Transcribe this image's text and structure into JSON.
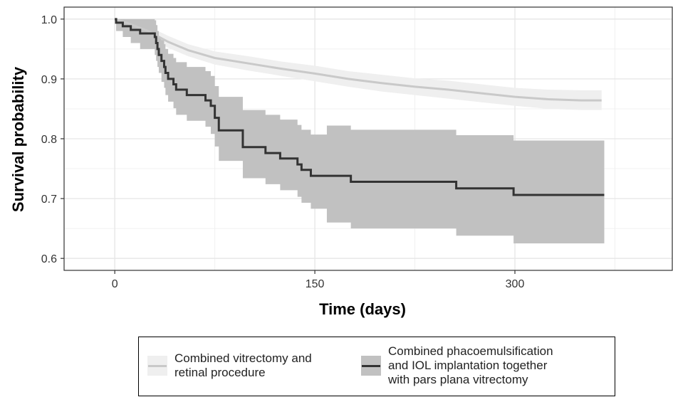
{
  "chart_data": {
    "type": "line",
    "xlabel": "Time (days)",
    "ylabel": "Survival probability",
    "xlim": [
      -38,
      418
    ],
    "ylim": [
      0.58,
      1.02
    ],
    "xticks": [
      0,
      150,
      300
    ],
    "yticks": [
      0.6,
      0.7,
      0.8,
      0.9,
      1.0
    ],
    "ytick_labels": [
      "0.6",
      "0.7",
      "0.8",
      "0.9",
      "1.0"
    ],
    "grid": true,
    "legend_position": "bottom",
    "series": [
      {
        "name": "Combined vitrectomy and\nretinal procedure",
        "line_color": "#c9c9c9",
        "band_color": "#efefef",
        "step": false,
        "points": [
          {
            "x": 0,
            "y": 1.0,
            "lo": 1.0,
            "hi": 1.0
          },
          {
            "x": 10,
            "y": 0.993,
            "lo": 0.985,
            "hi": 0.998
          },
          {
            "x": 25,
            "y": 0.98,
            "lo": 0.97,
            "hi": 0.988
          },
          {
            "x": 40,
            "y": 0.962,
            "lo": 0.952,
            "hi": 0.972
          },
          {
            "x": 55,
            "y": 0.948,
            "lo": 0.938,
            "hi": 0.958
          },
          {
            "x": 75,
            "y": 0.935,
            "lo": 0.924,
            "hi": 0.946
          },
          {
            "x": 100,
            "y": 0.926,
            "lo": 0.914,
            "hi": 0.938
          },
          {
            "x": 125,
            "y": 0.917,
            "lo": 0.905,
            "hi": 0.929
          },
          {
            "x": 150,
            "y": 0.909,
            "lo": 0.896,
            "hi": 0.922
          },
          {
            "x": 175,
            "y": 0.9,
            "lo": 0.887,
            "hi": 0.913
          },
          {
            "x": 200,
            "y": 0.893,
            "lo": 0.879,
            "hi": 0.907
          },
          {
            "x": 225,
            "y": 0.887,
            "lo": 0.873,
            "hi": 0.901
          },
          {
            "x": 250,
            "y": 0.882,
            "lo": 0.867,
            "hi": 0.897
          },
          {
            "x": 275,
            "y": 0.876,
            "lo": 0.861,
            "hi": 0.891
          },
          {
            "x": 300,
            "y": 0.87,
            "lo": 0.855,
            "hi": 0.885
          },
          {
            "x": 325,
            "y": 0.866,
            "lo": 0.85,
            "hi": 0.882
          },
          {
            "x": 350,
            "y": 0.864,
            "lo": 0.848,
            "hi": 0.881
          },
          {
            "x": 365,
            "y": 0.864,
            "lo": 0.848,
            "hi": 0.881
          }
        ]
      },
      {
        "name": "Combined phacoemulsification\nand IOL implantation together\nwith pars plana vitrectomy",
        "line_color": "#333333",
        "band_color": "#c1c1c1",
        "step": true,
        "points": [
          {
            "x": 0,
            "y": 1.0,
            "lo": 1.0,
            "hi": 1.0
          },
          {
            "x": 1,
            "y": 0.994,
            "lo": 0.98,
            "hi": 1.0
          },
          {
            "x": 6,
            "y": 0.988,
            "lo": 0.97,
            "hi": 1.0
          },
          {
            "x": 12,
            "y": 0.982,
            "lo": 0.96,
            "hi": 1.0
          },
          {
            "x": 19,
            "y": 0.976,
            "lo": 0.95,
            "hi": 1.0
          },
          {
            "x": 30,
            "y": 0.97,
            "lo": 0.94,
            "hi": 0.998
          },
          {
            "x": 31,
            "y": 0.96,
            "lo": 0.93,
            "hi": 0.99
          },
          {
            "x": 32,
            "y": 0.95,
            "lo": 0.92,
            "hi": 0.98
          },
          {
            "x": 33,
            "y": 0.94,
            "lo": 0.91,
            "hi": 0.97
          },
          {
            "x": 35,
            "y": 0.93,
            "lo": 0.895,
            "hi": 0.965
          },
          {
            "x": 37,
            "y": 0.92,
            "lo": 0.885,
            "hi": 0.958
          },
          {
            "x": 38,
            "y": 0.91,
            "lo": 0.873,
            "hi": 0.95
          },
          {
            "x": 40,
            "y": 0.9,
            "lo": 0.862,
            "hi": 0.942
          },
          {
            "x": 44,
            "y": 0.891,
            "lo": 0.851,
            "hi": 0.935
          },
          {
            "x": 46,
            "y": 0.882,
            "lo": 0.84,
            "hi": 0.928
          },
          {
            "x": 54,
            "y": 0.873,
            "lo": 0.83,
            "hi": 0.92
          },
          {
            "x": 68,
            "y": 0.864,
            "lo": 0.82,
            "hi": 0.913
          },
          {
            "x": 72,
            "y": 0.855,
            "lo": 0.808,
            "hi": 0.905
          },
          {
            "x": 75,
            "y": 0.835,
            "lo": 0.787,
            "hi": 0.888
          },
          {
            "x": 78,
            "y": 0.814,
            "lo": 0.763,
            "hi": 0.87
          },
          {
            "x": 96,
            "y": 0.786,
            "lo": 0.734,
            "hi": 0.848
          },
          {
            "x": 113,
            "y": 0.776,
            "lo": 0.724,
            "hi": 0.84
          },
          {
            "x": 124,
            "y": 0.767,
            "lo": 0.714,
            "hi": 0.832
          },
          {
            "x": 137,
            "y": 0.757,
            "lo": 0.703,
            "hi": 0.823
          },
          {
            "x": 140,
            "y": 0.748,
            "lo": 0.693,
            "hi": 0.815
          },
          {
            "x": 147,
            "y": 0.738,
            "lo": 0.683,
            "hi": 0.807
          },
          {
            "x": 159,
            "y": 0.738,
            "lo": 0.66,
            "hi": 0.822
          },
          {
            "x": 177,
            "y": 0.728,
            "lo": 0.65,
            "hi": 0.815
          },
          {
            "x": 256,
            "y": 0.717,
            "lo": 0.638,
            "hi": 0.806
          },
          {
            "x": 299,
            "y": 0.706,
            "lo": 0.625,
            "hi": 0.797
          },
          {
            "x": 367,
            "y": 0.706,
            "lo": 0.625,
            "hi": 0.797
          }
        ]
      }
    ]
  }
}
